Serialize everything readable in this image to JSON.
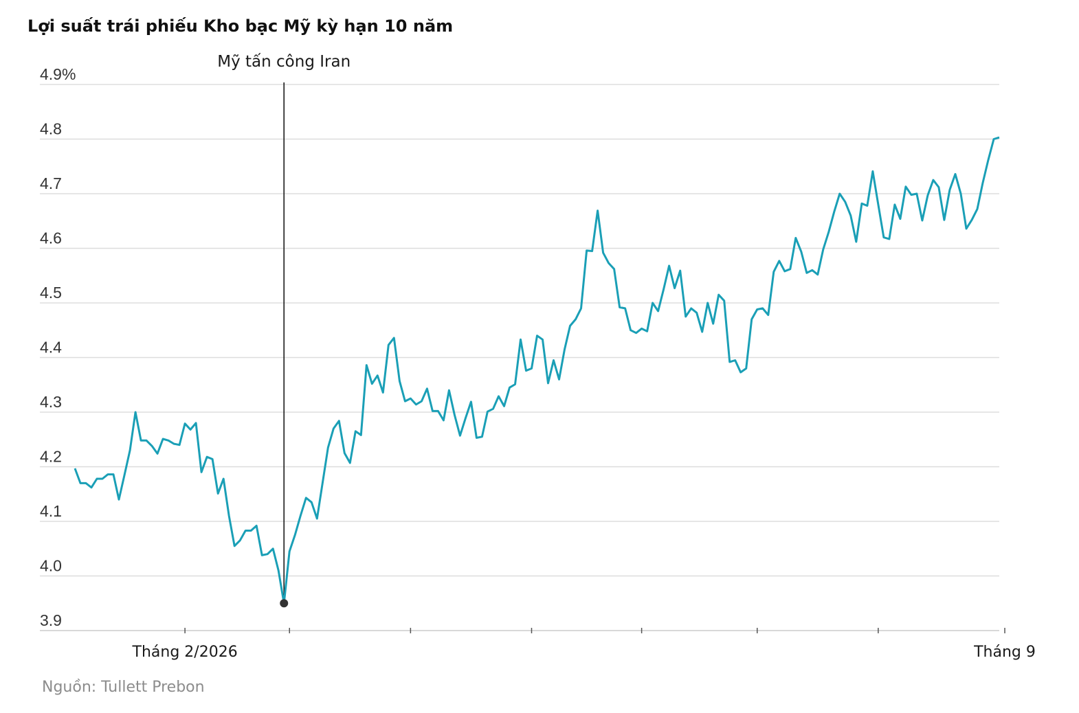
{
  "title": "Lợi suất trái phiếu Kho bạc Mỹ kỳ hạn 10 năm",
  "source": "Nguồn: Tullett Prebon",
  "colors": {
    "line": "#1a9fb6",
    "grid": "#dddddd",
    "annotation": "#1a1a1a",
    "axis": "#cccccc"
  },
  "chart_data": {
    "type": "line",
    "ylim": [
      3.9,
      4.9
    ],
    "yticks": [
      {
        "value": 3.9,
        "label": "3.9"
      },
      {
        "value": 4.0,
        "label": "4.0"
      },
      {
        "value": 4.1,
        "label": "4.1"
      },
      {
        "value": 4.2,
        "label": "4.2"
      },
      {
        "value": 4.3,
        "label": "4.3"
      },
      {
        "value": 4.4,
        "label": "4.4"
      },
      {
        "value": 4.5,
        "label": "4.5"
      },
      {
        "value": 4.6,
        "label": "4.6"
      },
      {
        "value": 4.7,
        "label": "4.7"
      },
      {
        "value": 4.8,
        "label": "4.8"
      },
      {
        "value": 4.9,
        "label": "4.9%"
      }
    ],
    "xtick_labels": [
      {
        "index": 20,
        "label": "Tháng 2/2026"
      },
      {
        "index": 169,
        "label": "Tháng 9"
      }
    ],
    "xtick_marks": [
      20,
      39,
      61,
      83,
      103,
      124,
      146,
      169
    ],
    "annotation": {
      "label": "Mỹ tấn công Iran",
      "index": 38
    },
    "values": [
      4.197,
      4.17,
      4.17,
      4.162,
      4.178,
      4.178,
      4.186,
      4.186,
      4.14,
      4.185,
      4.23,
      4.3,
      4.248,
      4.248,
      4.238,
      4.224,
      4.251,
      4.248,
      4.242,
      4.24,
      4.279,
      4.268,
      4.28,
      4.19,
      4.218,
      4.214,
      4.151,
      4.178,
      4.11,
      4.055,
      4.065,
      4.083,
      4.083,
      4.092,
      4.038,
      4.04,
      4.05,
      4.01,
      3.95,
      4.045,
      4.075,
      4.11,
      4.143,
      4.135,
      4.105,
      4.17,
      4.235,
      4.27,
      4.284,
      4.225,
      4.207,
      4.265,
      4.258,
      4.386,
      4.352,
      4.367,
      4.336,
      4.423,
      4.436,
      4.357,
      4.32,
      4.325,
      4.314,
      4.32,
      4.343,
      4.302,
      4.302,
      4.285,
      4.34,
      4.295,
      4.257,
      4.289,
      4.319,
      4.253,
      4.255,
      4.301,
      4.306,
      4.329,
      4.311,
      4.345,
      4.351,
      4.433,
      4.376,
      4.38,
      4.44,
      4.433,
      4.353,
      4.395,
      4.36,
      4.415,
      4.458,
      4.47,
      4.49,
      4.596,
      4.595,
      4.669,
      4.592,
      4.573,
      4.562,
      4.492,
      4.49,
      4.45,
      4.445,
      4.453,
      4.448,
      4.5,
      4.485,
      4.525,
      4.568,
      4.527,
      4.559,
      4.475,
      4.49,
      4.482,
      4.447,
      4.5,
      4.462,
      4.515,
      4.504,
      4.392,
      4.395,
      4.373,
      4.38,
      4.47,
      4.488,
      4.49,
      4.478,
      4.557,
      4.577,
      4.558,
      4.562,
      4.619,
      4.594,
      4.555,
      4.56,
      4.552,
      4.598,
      4.63,
      4.667,
      4.7,
      4.685,
      4.66,
      4.612,
      4.682,
      4.678,
      4.741,
      4.68,
      4.62,
      4.617,
      4.68,
      4.654,
      4.713,
      4.698,
      4.7,
      4.651,
      4.697,
      4.725,
      4.712,
      4.652,
      4.707,
      4.736,
      4.7,
      4.636,
      4.652,
      4.672,
      4.72,
      4.762,
      4.8,
      4.803
    ]
  }
}
